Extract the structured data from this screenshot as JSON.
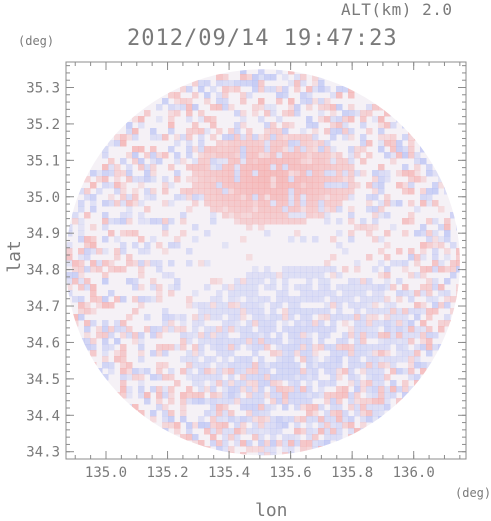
{
  "header": {
    "altitude_label": "ALT(km) 2.0",
    "timestamp": "2012/09/14 19:47:23"
  },
  "chart_data": {
    "type": "heatmap",
    "xlabel": "lon",
    "ylabel": "lat",
    "x_unit": "(deg)",
    "y_unit": "(deg)",
    "xlim": [
      134.87,
      136.17
    ],
    "ylim": [
      34.28,
      35.37
    ],
    "x_ticks": [
      "135.0",
      "135.2",
      "135.4",
      "135.6",
      "135.8",
      "136.0"
    ],
    "x_tick_values": [
      135.0,
      135.2,
      135.4,
      135.6,
      135.8,
      136.0
    ],
    "y_ticks": [
      "34.3",
      "34.4",
      "34.5",
      "34.6",
      "34.7",
      "34.8",
      "34.9",
      "35.0",
      "35.1",
      "35.2",
      "35.3"
    ],
    "y_tick_values": [
      34.3,
      34.4,
      34.5,
      34.6,
      34.7,
      34.8,
      34.9,
      35.0,
      35.1,
      35.2,
      35.3
    ],
    "circle_center": [
      135.51,
      34.82
    ],
    "circle_radius_lon": 0.64,
    "circle_radius_lat": 0.53,
    "colors": {
      "positive": "#f4a7a7",
      "negative": "#b3bdf4",
      "frame": "#8c8c8c"
    }
  }
}
